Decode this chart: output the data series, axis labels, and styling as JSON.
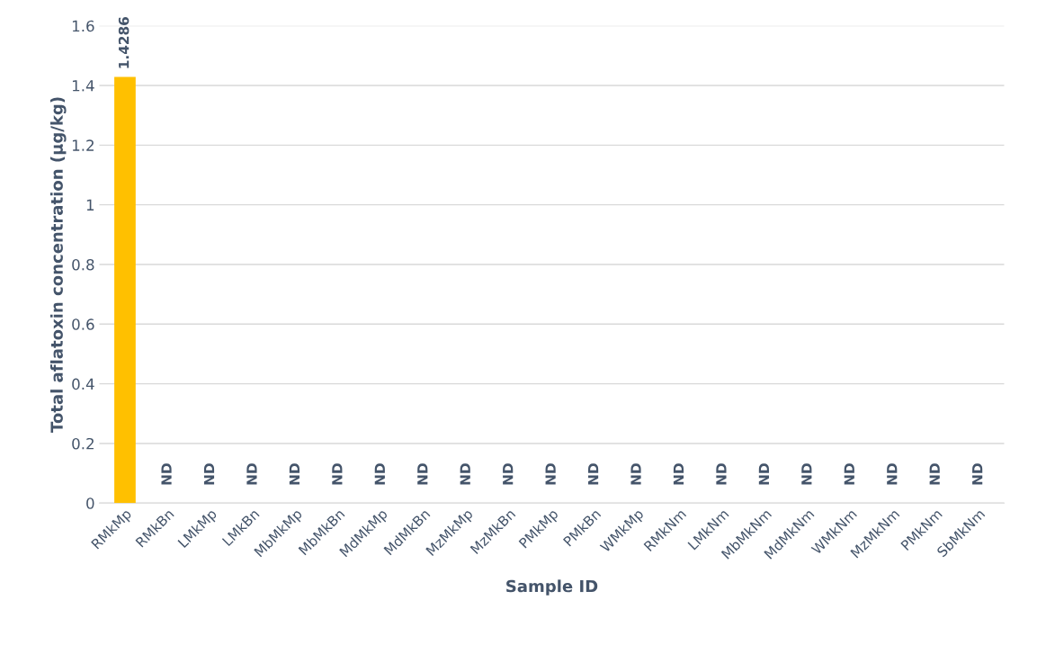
{
  "chart_data": {
    "type": "bar",
    "xlabel": "Sample ID",
    "ylabel": "Total aflatoxin concentration (µg/kg)",
    "categories": [
      "RMkMp",
      "RMkBn",
      "LMkMp",
      "LMkBn",
      "MbMkMp",
      "MbMkBn",
      "MdMkMp",
      "MdMkBn",
      "MzMkMp",
      "MzMkBn",
      "PMkMp",
      "PMkBn",
      "WMkMp",
      "RMkNm",
      "LMkNm",
      "MbMkNm",
      "MdMkNm",
      "WMkNm",
      "MzMkNm",
      "PMkNm",
      "SbMkNm"
    ],
    "values": [
      1.4286,
      null,
      null,
      null,
      null,
      null,
      null,
      null,
      null,
      null,
      null,
      null,
      null,
      null,
      null,
      null,
      null,
      null,
      null,
      null,
      null
    ],
    "value_labels": [
      "1.4286",
      "ND",
      "ND",
      "ND",
      "ND",
      "ND",
      "ND",
      "ND",
      "ND",
      "ND",
      "ND",
      "ND",
      "ND",
      "ND",
      "ND",
      "ND",
      "ND",
      "ND",
      "ND",
      "ND",
      "ND"
    ],
    "color": "#ffc000",
    "ylim": [
      0,
      1.6
    ],
    "yticks": [
      0,
      0.2,
      0.4,
      0.6,
      0.8,
      1,
      1.2,
      1.4,
      1.6
    ],
    "grid": "y",
    "legend": false
  }
}
